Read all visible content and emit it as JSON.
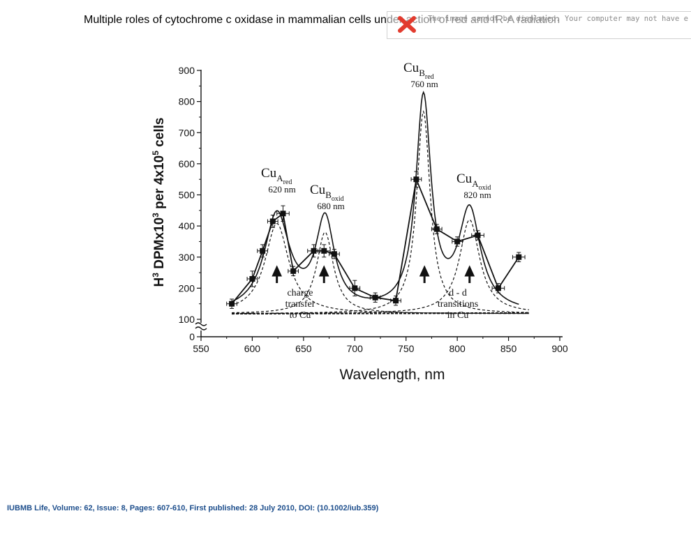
{
  "page": {
    "title": "Multiple roles of cytochrome c oxidase in mammalian cells under action of red and IR-A radiation",
    "broken_image_message": "The image cannot be displayed. Your computer may not have enough memory to open the image, or the image may have been corrupted.",
    "citation": "IUBMB Life, Volume: 62, Issue: 8, Pages: 607-610, First published: 28 July 2010, DOI: (10.1002/iub.359)"
  },
  "colors": {
    "citation": "#1d4e8c",
    "ink": "#111111",
    "broken_x": "#e23b2e"
  },
  "chart_data": {
    "type": "line",
    "title": "",
    "xlabel": "Wavelength, nm",
    "ylabel": {
      "prefix": "H",
      "sup1": "3",
      "mid": " DPMx10",
      "sup2": "3",
      "mid2": " per 4x10",
      "sup3": "5",
      "suffix": " cells"
    },
    "xlim": [
      550,
      900
    ],
    "ylim": [
      0,
      900
    ],
    "y_axis_break": "between 0 and 100",
    "xticks": [
      550,
      600,
      650,
      700,
      750,
      800,
      850,
      900
    ],
    "yticks": [
      0,
      100,
      200,
      300,
      400,
      500,
      600,
      700,
      800,
      900
    ],
    "series": [
      {
        "name": "measured",
        "style": "solid line with square markers and error bars",
        "x": [
          580,
          600,
          610,
          620,
          630,
          640,
          660,
          670,
          680,
          700,
          720,
          740,
          760,
          780,
          800,
          820,
          840,
          860
        ],
        "y": [
          150,
          230,
          320,
          415,
          440,
          255,
          320,
          320,
          310,
          200,
          170,
          160,
          550,
          390,
          350,
          370,
          200,
          300
        ],
        "xerr": [
          5,
          5,
          5,
          5,
          6,
          5,
          6,
          6,
          5,
          5,
          5,
          5,
          5,
          5,
          5,
          6,
          6,
          6
        ],
        "yerr": [
          15,
          25,
          20,
          20,
          25,
          15,
          20,
          20,
          15,
          25,
          15,
          15,
          25,
          15,
          15,
          15,
          15,
          15
        ]
      },
      {
        "name": "fitted envelope",
        "style": "solid curve",
        "baseline": 118,
        "peaks": [
          {
            "center": 624,
            "amplitude": 312,
            "width": 15
          },
          {
            "center": 671,
            "amplitude": 287,
            "width": 11
          },
          {
            "center": 767,
            "amplitude": 680,
            "width": 9
          },
          {
            "center": 812,
            "amplitude": 320,
            "width": 13
          }
        ]
      },
      {
        "name": "component bands",
        "style": "dashed curves",
        "baseline": 118,
        "peaks": [
          {
            "center": 624,
            "amplitude": 290,
            "width": 14
          },
          {
            "center": 671,
            "amplitude": 262,
            "width": 10
          },
          {
            "center": 767,
            "amplitude": 650,
            "width": 8
          },
          {
            "center": 812,
            "amplitude": 302,
            "width": 12
          }
        ]
      }
    ],
    "peak_annotations": [
      {
        "x": 620,
        "sub": "A",
        "subsub": "red",
        "nm": "620 nm"
      },
      {
        "x": 680,
        "sub": "B",
        "subsub": "oxid",
        "nm": "680 nm"
      },
      {
        "x": 760,
        "sub": "B",
        "subsub": "red",
        "nm": "760 nm"
      },
      {
        "x": 820,
        "sub": "A",
        "subsub": "oxid",
        "nm": "820 nm"
      }
    ],
    "peak_label_base": "Cu",
    "arrows_x": [
      624,
      670,
      768,
      812
    ],
    "band_labels": {
      "charge_transfer": [
        "charge",
        "transfer",
        "to Cu"
      ],
      "dd_transitions": [
        "d - d",
        "transitions",
        "in Cu"
      ]
    }
  }
}
